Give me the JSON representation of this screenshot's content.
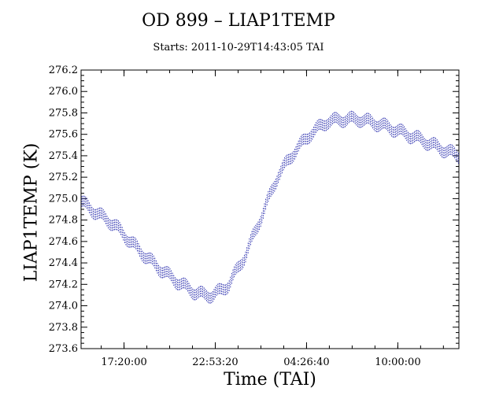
{
  "chart_data": {
    "type": "scatter",
    "title": "OD 899 – LIAP1TEMP",
    "subtitle": "Starts: 2011-10-29T14:43:05 TAI",
    "xlabel": "Time (TAI)",
    "ylabel": "LIAP1TEMP (K)",
    "x_unit": "hours since 14:43:05 TAI",
    "xlim": [
      0,
      23.0
    ],
    "ylim": [
      273.6,
      276.2
    ],
    "x_ticks": [
      {
        "value": 2.615,
        "label": "17:20:00"
      },
      {
        "value": 8.17,
        "label": "22:53:20"
      },
      {
        "value": 13.726,
        "label": "04:26:40"
      },
      {
        "value": 19.282,
        "label": "10:00:00"
      }
    ],
    "y_ticks": [
      {
        "value": 273.6,
        "label": "273.6"
      },
      {
        "value": 273.8,
        "label": "273.8"
      },
      {
        "value": 274.0,
        "label": "274.0"
      },
      {
        "value": 274.2,
        "label": "274.2"
      },
      {
        "value": 274.4,
        "label": "274.4"
      },
      {
        "value": 274.6,
        "label": "274.6"
      },
      {
        "value": 274.8,
        "label": "274.8"
      },
      {
        "value": 275.0,
        "label": "275.0"
      },
      {
        "value": 275.2,
        "label": "275.2"
      },
      {
        "value": 275.4,
        "label": "275.4"
      },
      {
        "value": 275.6,
        "label": "275.6"
      },
      {
        "value": 275.8,
        "label": "275.8"
      },
      {
        "value": 276.0,
        "label": "276.0"
      },
      {
        "value": 276.2,
        "label": "276.2"
      }
    ],
    "series_color": "#2b2fae",
    "band_halfwidth": 0.05,
    "grid": false,
    "series": [
      {
        "x": [
          0,
          1,
          2,
          3,
          4,
          5,
          6,
          7,
          7.5,
          8,
          8.5,
          9,
          10,
          11,
          12,
          13,
          14,
          15,
          16,
          17,
          18,
          19,
          20,
          21,
          22,
          23
        ],
        "y": [
          274.97,
          274.86,
          274.76,
          274.6,
          274.45,
          274.32,
          274.21,
          274.12,
          274.1,
          274.1,
          274.14,
          274.2,
          274.47,
          274.84,
          275.22,
          275.44,
          275.61,
          275.72,
          275.74,
          275.74,
          275.7,
          275.65,
          275.59,
          275.53,
          275.46,
          275.4
        ]
      }
    ]
  }
}
